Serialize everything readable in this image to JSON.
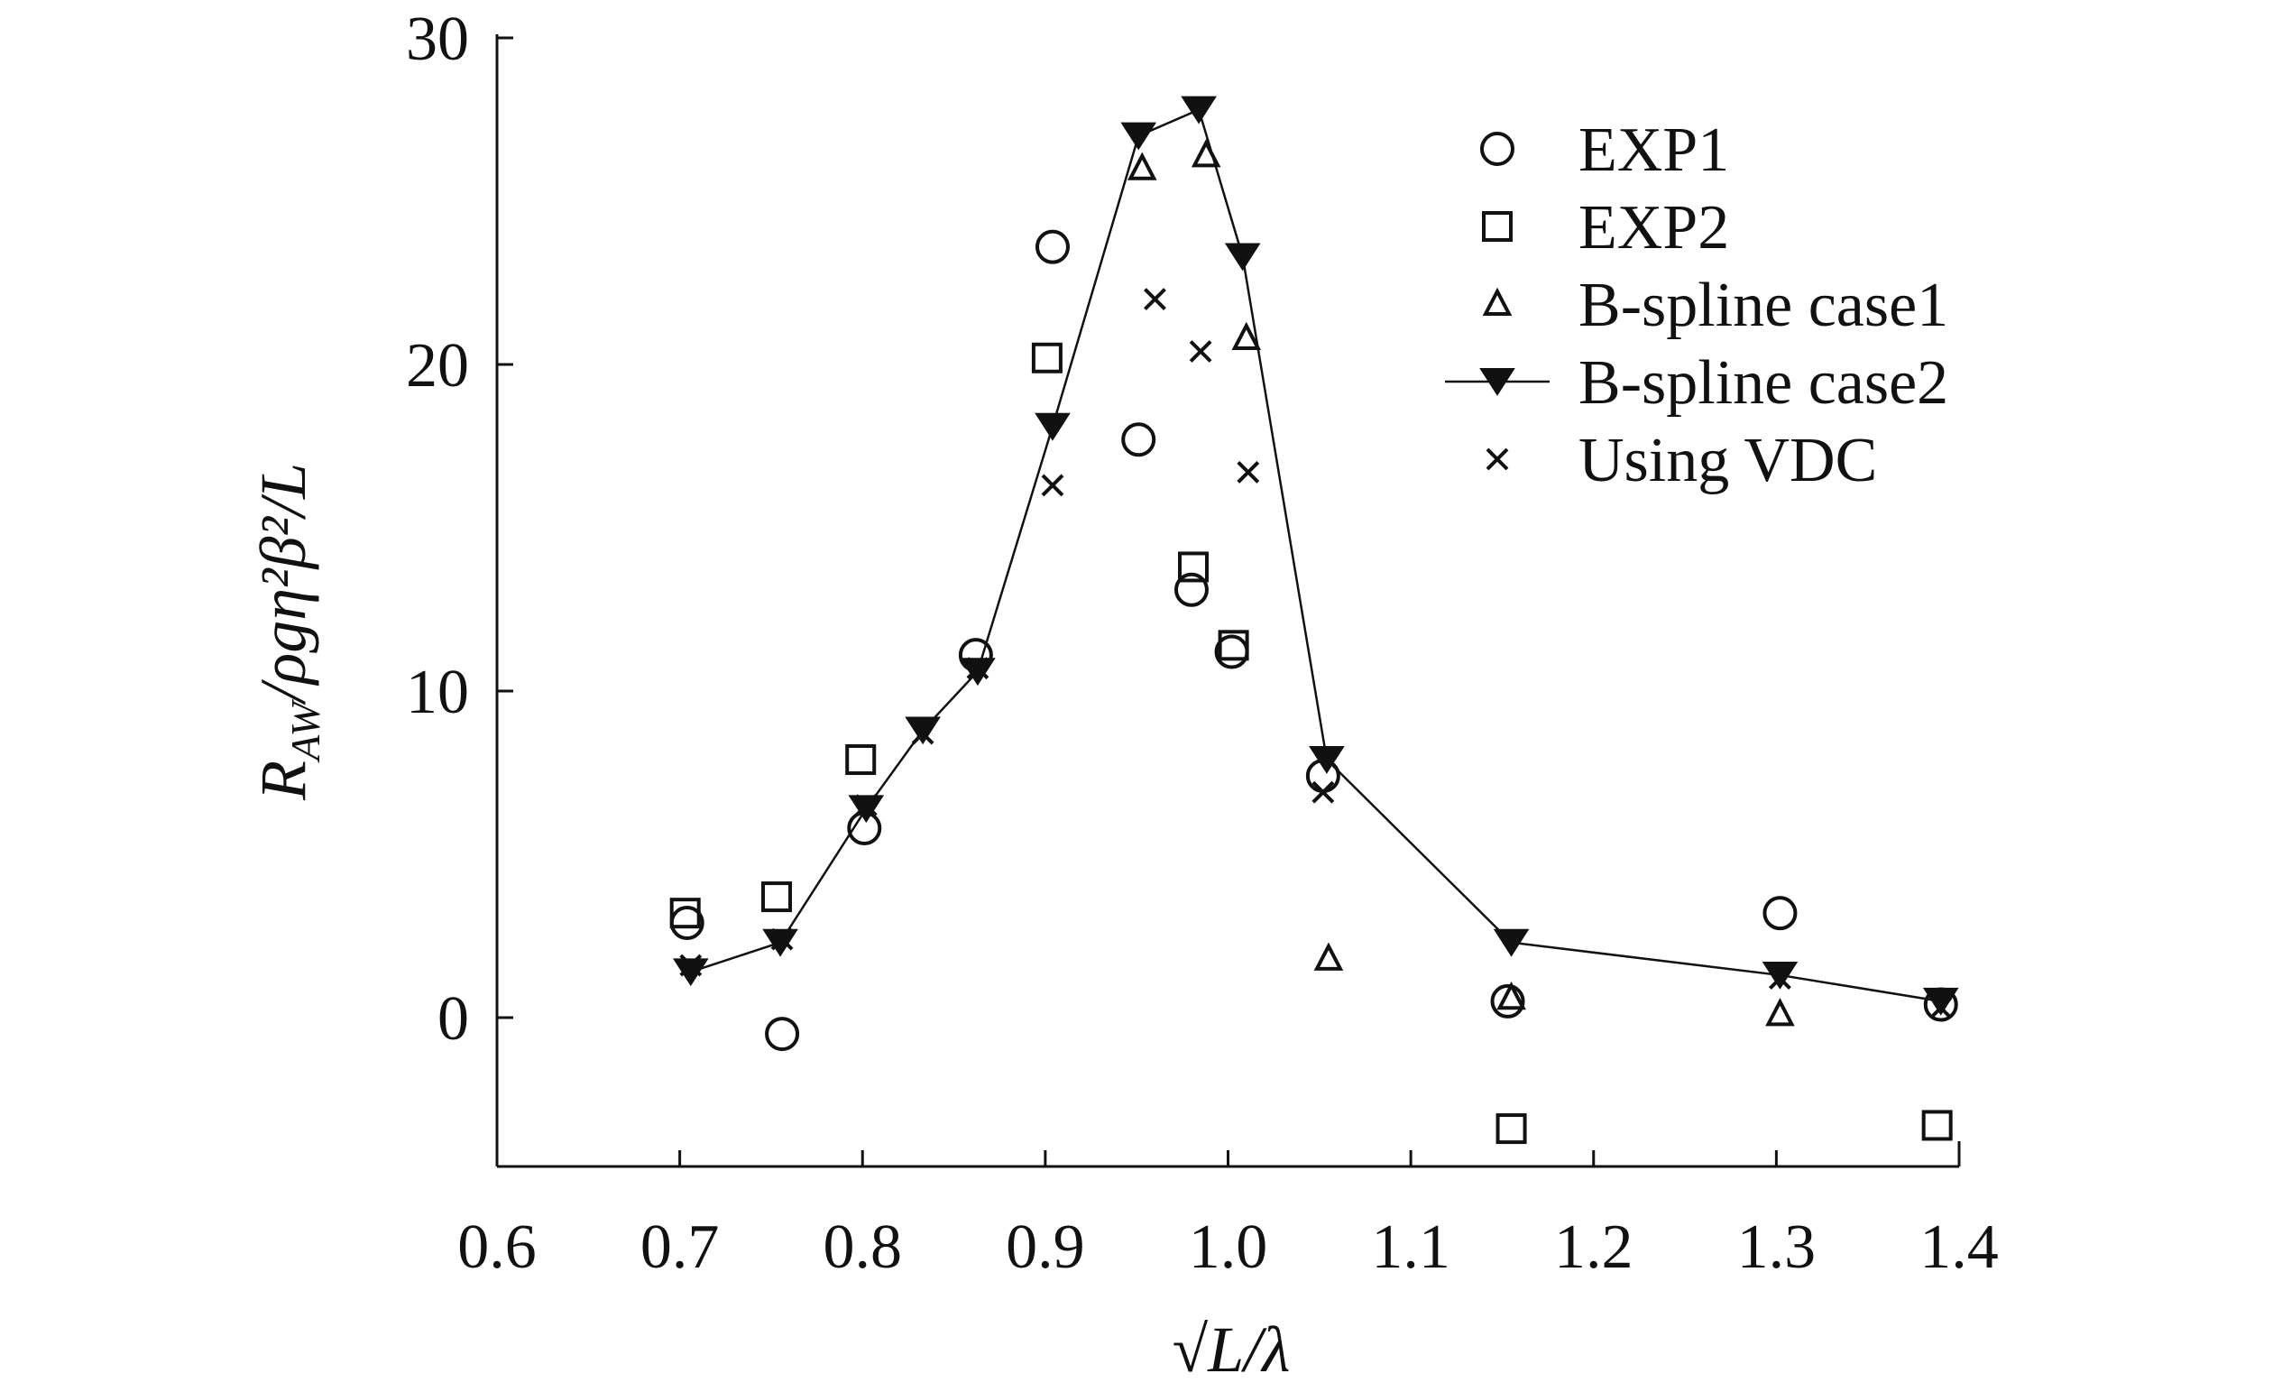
{
  "chart_data": {
    "type": "scatter",
    "title": "",
    "xlabel": "√L/λ",
    "ylabel": "R_AW/ρgη²β²/L",
    "ylabel_parts": {
      "main": "R",
      "sub": "AW",
      "rest": "/ρgη²β²/L"
    },
    "xlim": [
      0.6,
      1.4
    ],
    "ylim": [
      -4.5,
      30
    ],
    "xticks": [
      0.6,
      0.7,
      0.8,
      0.9,
      1.0,
      1.1,
      1.2,
      1.3,
      1.4
    ],
    "xtick_labels": [
      "0.6",
      "0.7",
      "0.8",
      "0.9",
      "1.0",
      "1.1",
      "1.2",
      "1.3",
      "1.4"
    ],
    "yticks": [
      0,
      10,
      20,
      30
    ],
    "ytick_labels": [
      "0",
      "10",
      "20",
      "30"
    ],
    "grid": false,
    "legend_position": "top-right",
    "series": [
      {
        "name": "EXP1",
        "marker": "circle",
        "line": false,
        "points": [
          [
            0.704,
            2.9
          ],
          [
            0.756,
            -0.5
          ],
          [
            0.801,
            5.8
          ],
          [
            0.862,
            11.1
          ],
          [
            0.904,
            23.6
          ],
          [
            0.951,
            17.7
          ],
          [
            0.98,
            13.1
          ],
          [
            1.002,
            11.2
          ],
          [
            1.052,
            7.4
          ],
          [
            1.153,
            0.5
          ],
          [
            1.302,
            3.2
          ],
          [
            1.39,
            0.4
          ]
        ]
      },
      {
        "name": "EXP2",
        "marker": "square",
        "line": false,
        "points": [
          [
            0.703,
            3.2
          ],
          [
            0.753,
            3.7
          ],
          [
            0.799,
            7.9
          ],
          [
            0.901,
            20.2
          ],
          [
            0.981,
            13.8
          ],
          [
            1.003,
            11.4
          ],
          [
            1.155,
            -3.4
          ],
          [
            1.388,
            -3.3
          ]
        ]
      },
      {
        "name": "B-spline case1",
        "marker": "triangle",
        "line": false,
        "points": [
          [
            0.953,
            26.0
          ],
          [
            0.988,
            26.4
          ],
          [
            1.01,
            20.8
          ],
          [
            1.055,
            1.8
          ],
          [
            1.155,
            0.6
          ],
          [
            1.302,
            0.1
          ]
        ]
      },
      {
        "name": "B-spline case2",
        "marker": "triangle-down-filled",
        "line": true,
        "points": [
          [
            0.706,
            1.4
          ],
          [
            0.755,
            2.3
          ],
          [
            0.802,
            6.4
          ],
          [
            0.833,
            8.8
          ],
          [
            0.863,
            10.6
          ],
          [
            0.904,
            18.1
          ],
          [
            0.951,
            27.0
          ],
          [
            0.984,
            27.8
          ],
          [
            1.008,
            23.3
          ],
          [
            1.054,
            7.9
          ],
          [
            1.155,
            2.3
          ],
          [
            1.302,
            1.3
          ],
          [
            1.39,
            0.5
          ]
        ]
      },
      {
        "name": "Using VDC",
        "marker": "x",
        "line": false,
        "points": [
          [
            0.706,
            1.6
          ],
          [
            0.756,
            2.4
          ],
          [
            0.802,
            6.5
          ],
          [
            0.833,
            8.7
          ],
          [
            0.863,
            10.7
          ],
          [
            0.904,
            16.3
          ],
          [
            0.96,
            22.0
          ],
          [
            0.985,
            20.4
          ],
          [
            1.011,
            16.7
          ],
          [
            1.052,
            6.9
          ],
          [
            1.302,
            1.2
          ],
          [
            1.39,
            0.3
          ]
        ]
      }
    ]
  }
}
